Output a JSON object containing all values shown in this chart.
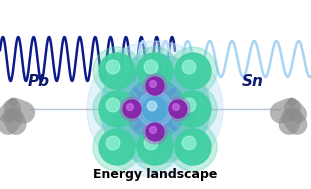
{
  "title": "Energy landscape",
  "title_fontsize": 9,
  "title_fontweight": "bold",
  "pb_label": "Pb",
  "sn_label": "Sn",
  "label_fontsize": 11,
  "pb_label_color": "#0d1a6e",
  "sn_label_color": "#0d1a6e",
  "bg_color": "#ffffff",
  "wave_dark_color": "#0d1a8c",
  "wave_light_color": "#a8d4f5",
  "fig_color": "#8c8c8c",
  "glow1_color": "#c5e3f7",
  "glow2_color": "#7bbde8",
  "glow3_color": "#5599d8",
  "glow4_color": "#4488cc",
  "corner_atom_outer": "#5dd4b0",
  "corner_atom_main": "#3ecfa0",
  "corner_atom_highlight": "#b0ffe8",
  "halide_outer": "#b060d0",
  "halide_main": "#8822aa",
  "halide_highlight": "#e080ff",
  "center_outer": "#80c8e8",
  "center_main": "#50a8d8",
  "center_highlight": "#d0f0ff",
  "rod_color": "#9ab0c8",
  "figure_width": 3.11,
  "figure_height": 1.89,
  "dpi": 100
}
